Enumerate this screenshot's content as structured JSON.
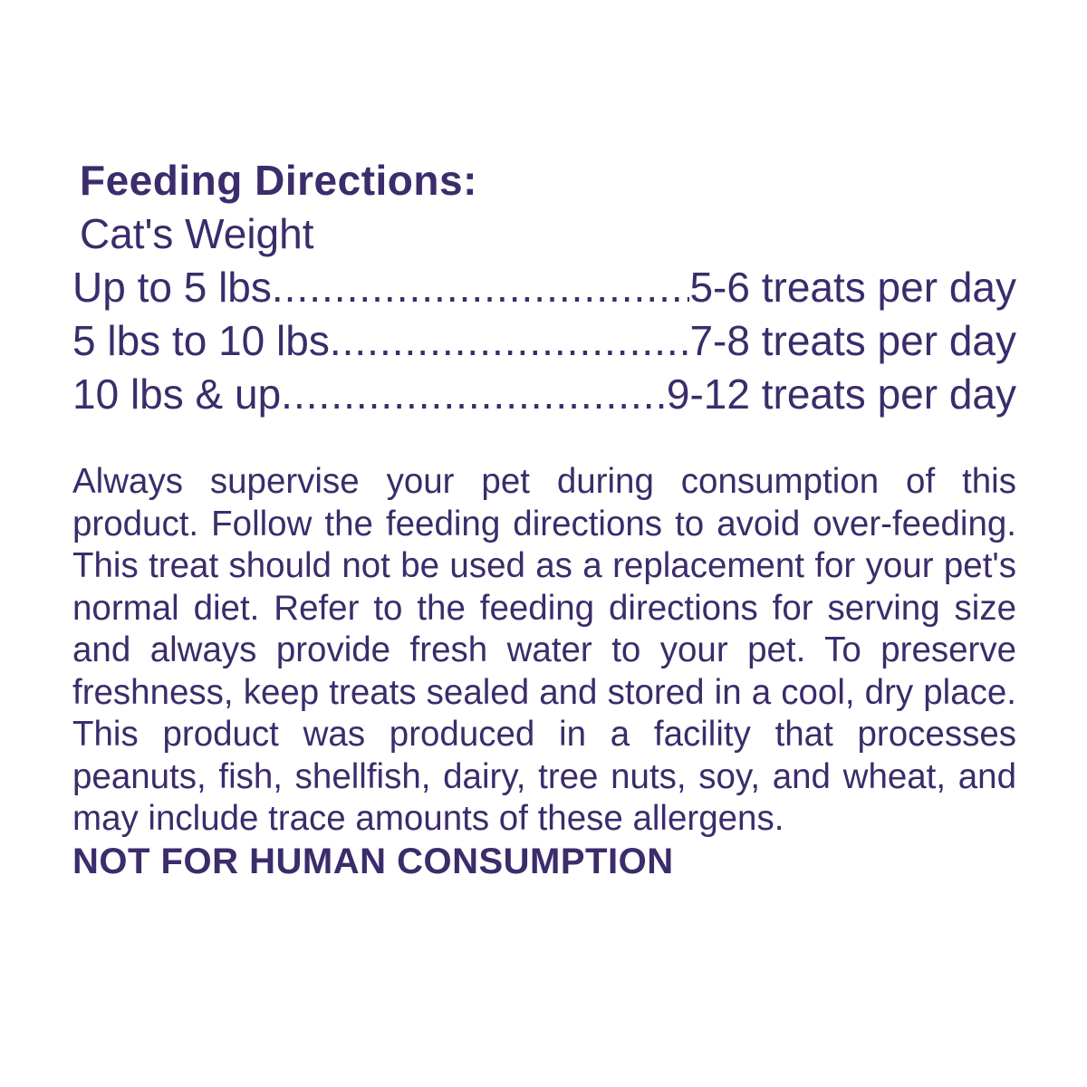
{
  "page": {
    "background_color": "#ffffff",
    "text_color": "#3b2c6b"
  },
  "feeding_directions": {
    "title": "Feeding Directions:",
    "weight_header": "Cat's Weight",
    "leader_dots": "....................................................................................................",
    "rows": [
      {
        "weight": "Up to 5 lbs",
        "treats": "5-6 treats per day"
      },
      {
        "weight": "5 lbs to 10 lbs",
        "treats": "7-8 treats per day"
      },
      {
        "weight": "10 lbs & up",
        "treats": "9-12 treats per day"
      }
    ]
  },
  "advisory": {
    "paragraph": "Always supervise your pet during consumption of this product. Follow the feeding directions to avoid over-feeding. This treat should not be used as a replacement for your pet's normal diet. Refer to the feeding directions for serving size and always provide fresh water to your pet. To preserve freshness, keep treats sealed and stored in a cool, dry place. This product was produced in a facility that processes peanuts, fish, shellfish, dairy, tree nuts, soy, and wheat, and may include trace amounts of these allergens.",
    "warning": "NOT FOR HUMAN CONSUMPTION"
  }
}
